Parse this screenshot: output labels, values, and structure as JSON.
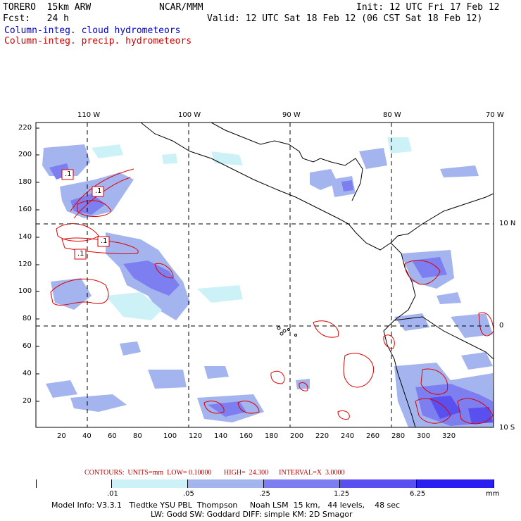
{
  "header": {
    "model": "TORERO  15km ARW",
    "center": "NCAR/MMM",
    "init": "Init: 12 UTC Fri 17 Feb 12",
    "fcst": "Fcst:   24 h",
    "valid": "Valid: 12 UTC Sat 18 Feb 12 (06 CST Sat 18 Feb 12)",
    "field1": "Column-integ. cloud hydrometeors",
    "field2": "Column-integ. precip. hydrometeors",
    "field1_color": "#0000cc",
    "field2_color": "#d00000"
  },
  "axes": {
    "top_lon": [
      "110 W",
      "100 W",
      "90 W",
      "80 W",
      "70 W"
    ],
    "right_lat": [
      "10 N",
      "0",
      "10 S"
    ],
    "y_ticks": [
      "220",
      "200",
      "180",
      "160",
      "140",
      "120",
      "100",
      "80",
      "60",
      "40",
      "20"
    ],
    "x_ticks": [
      "20",
      "40",
      "60",
      "80",
      "100",
      "120",
      "140",
      "160",
      "180",
      "200",
      "220",
      "240",
      "260",
      "280",
      "300",
      "320"
    ]
  },
  "contour_labels": [
    ".1",
    ".1",
    ".1",
    ".1"
  ],
  "legend": {
    "contours": "CONTOURS:  UNITS=mm  LOW= 0.10000       HIGH=  24.300      INTERVAL=X  3.0000",
    "levels": [
      ".01",
      ".05",
      ".25",
      "1.25",
      "6.25"
    ],
    "unit": "mm",
    "colors": [
      "#ffffff",
      "#ccf2f8",
      "#a4b4ee",
      "#7d7ef0",
      "#5a50f0",
      "#2a1ef0"
    ]
  },
  "footer": {
    "line1": "Model Info: V3.3.1   Tiedtke YSU PBL  Thompson     Noah LSM  15 km,   44 levels,    48 sec",
    "line2": "LW: Godd SW: Goddard DIFF: simple KM: 2D Smagor"
  }
}
